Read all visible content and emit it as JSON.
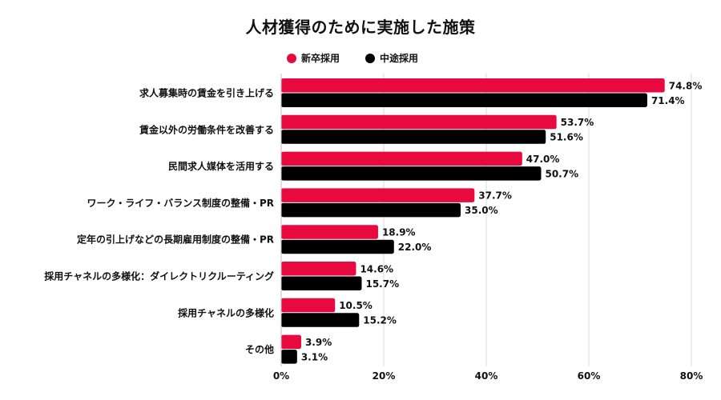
{
  "chart_data": {
    "type": "bar",
    "orientation": "horizontal",
    "title": "人材獲得のために実施した施策",
    "categories": [
      "求人募集時の賃金を引き上げる",
      "賃金以外の労働条件を改善する",
      "民間求人媒体を活用する",
      "ワーク・ライフ・バランス制度の整備・PR",
      "定年の引上げなどの長期雇用制度の整備・PR",
      "採用チャネルの多様化：ダイレクトリクルーティング",
      "採用チャネルの多様化",
      "その他"
    ],
    "series": [
      {
        "name": "新卒採用",
        "color": "#e8093f",
        "values": [
          74.8,
          53.7,
          47.0,
          37.7,
          18.9,
          14.6,
          10.5,
          3.9
        ]
      },
      {
        "name": "中途採用",
        "color": "#000000",
        "values": [
          71.4,
          51.6,
          50.7,
          35.0,
          22.0,
          15.7,
          15.2,
          3.1
        ]
      }
    ],
    "xlim": [
      0,
      80
    ],
    "xticks": [
      0,
      20,
      40,
      60,
      80
    ],
    "tick_format": "%",
    "value_format": "0.0%",
    "grid": true,
    "legend_position": "top"
  }
}
